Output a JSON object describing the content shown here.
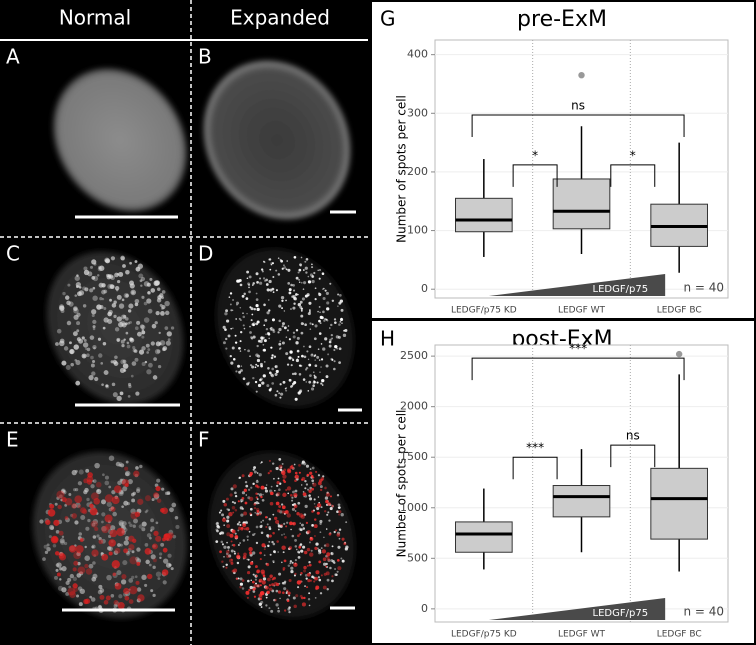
{
  "figure": {
    "columns": [
      "Normal",
      "Expanded"
    ],
    "panels": [
      "A",
      "B",
      "C",
      "D",
      "E",
      "F"
    ]
  },
  "chart_data": [
    {
      "type": "box",
      "panel": "G",
      "title": "pre-ExM",
      "y_label": "Number of spots per cell",
      "categories": [
        "LEDGF/p75 KD",
        "LEDGF WT",
        "LEDGF BC"
      ],
      "box_color": "#cccccc",
      "point_color": "#999999",
      "boxes": [
        {
          "low": 55,
          "q1": 98,
          "median": 118,
          "q3": 155,
          "high": 222,
          "outliers": []
        },
        {
          "low": 60,
          "q1": 103,
          "median": 133,
          "q3": 188,
          "high": 278,
          "outliers": [
            365
          ]
        },
        {
          "low": 28,
          "q1": 73,
          "median": 107,
          "q3": 145,
          "high": 250,
          "outliers": []
        }
      ],
      "ylim": [
        -15,
        425
      ],
      "yticks": [
        0,
        100,
        200,
        300,
        400
      ],
      "grid": true,
      "brackets": [
        {
          "label": "ns",
          "from": 0,
          "to": 2,
          "y": 297
        },
        {
          "label": "*",
          "from": 0,
          "to": 1,
          "y": 212
        },
        {
          "label": "*",
          "from": 1,
          "to": 2,
          "y": 212
        }
      ],
      "wedge_label": "LEDGF/p75",
      "note": "n = 40"
    },
    {
      "type": "box",
      "panel": "H",
      "title": "post-ExM",
      "y_label": "Number of spots per cell",
      "categories": [
        "LEDGF/p75 KD",
        "LEDGF WT",
        "LEDGF BC"
      ],
      "box_color": "#cccccc",
      "point_color": "#999999",
      "boxes": [
        {
          "low": 390,
          "q1": 560,
          "median": 740,
          "q3": 860,
          "high": 1190,
          "outliers": []
        },
        {
          "low": 560,
          "q1": 910,
          "median": 1110,
          "q3": 1220,
          "high": 1580,
          "outliers": []
        },
        {
          "low": 370,
          "q1": 690,
          "median": 1090,
          "q3": 1390,
          "high": 2320,
          "outliers": [
            2520
          ]
        }
      ],
      "ylim": [
        -130,
        2610
      ],
      "yticks": [
        0,
        500,
        1000,
        1500,
        2000,
        2500
      ],
      "grid": true,
      "brackets": [
        {
          "label": "***",
          "from": 0,
          "to": 2,
          "y": 2480
        },
        {
          "label": "***",
          "from": 0,
          "to": 1,
          "y": 1500
        },
        {
          "label": "ns",
          "from": 1,
          "to": 2,
          "y": 1620
        }
      ],
      "wedge_label": "LEDGF/p75",
      "note": "n = 40"
    }
  ]
}
